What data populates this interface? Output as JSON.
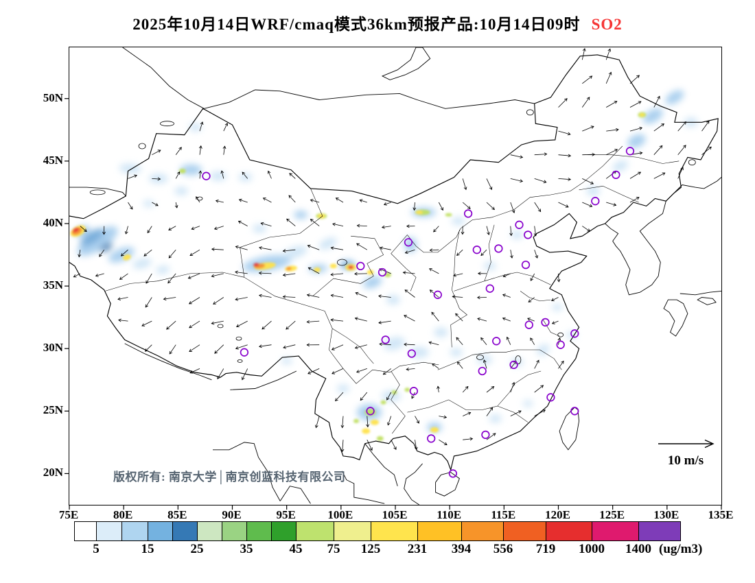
{
  "title": {
    "text": "2025年10月14日WRF/cmaq模式36km预报产品:10月14日09时",
    "species": "SO2",
    "species_color": "#F63535"
  },
  "axes": {
    "lon_range": [
      75,
      135
    ],
    "lat_range": [
      17.5,
      54.1
    ],
    "lat_ticks": [
      {
        "label": "50N",
        "value": 50
      },
      {
        "label": "45N",
        "value": 45
      },
      {
        "label": "40N",
        "value": 40
      },
      {
        "label": "35N",
        "value": 35
      },
      {
        "label": "30N",
        "value": 30
      },
      {
        "label": "25N",
        "value": 25
      },
      {
        "label": "20N",
        "value": 20
      }
    ],
    "lon_ticks": [
      {
        "label": "75E",
        "value": 75
      },
      {
        "label": "80E",
        "value": 80
      },
      {
        "label": "85E",
        "value": 85
      },
      {
        "label": "90E",
        "value": 90
      },
      {
        "label": "95E",
        "value": 95
      },
      {
        "label": "100E",
        "value": 100
      },
      {
        "label": "105E",
        "value": 105
      },
      {
        "label": "110E",
        "value": 110
      },
      {
        "label": "115E",
        "value": 115
      },
      {
        "label": "120E",
        "value": 120
      },
      {
        "label": "125E",
        "value": 125
      },
      {
        "label": "130E",
        "value": 130
      },
      {
        "label": "135E",
        "value": 135
      }
    ]
  },
  "colorbar": {
    "unit": "(ug/m3)",
    "segments": [
      {
        "color": "#FFFFFF",
        "width": 0.036,
        "tick": "5"
      },
      {
        "color": "#DCEDF9",
        "width": 0.042,
        "tick": ""
      },
      {
        "color": "#AFD5F0",
        "width": 0.043,
        "tick": "15"
      },
      {
        "color": "#74B2E0",
        "width": 0.041,
        "tick": ""
      },
      {
        "color": "#3579B5",
        "width": 0.041,
        "tick": "25"
      },
      {
        "color": "#CDE7C1",
        "width": 0.041,
        "tick": ""
      },
      {
        "color": "#9AD383",
        "width": 0.041,
        "tick": "35"
      },
      {
        "color": "#5FBC4D",
        "width": 0.04,
        "tick": ""
      },
      {
        "color": "#2FA02B",
        "width": 0.041,
        "tick": "45"
      },
      {
        "color": "#BEE26E",
        "width": 0.063,
        "tick": "75"
      },
      {
        "color": "#EFEF8E",
        "width": 0.061,
        "tick": "125"
      },
      {
        "color": "#FFE44D",
        "width": 0.077,
        "tick": "231"
      },
      {
        "color": "#FFC125",
        "width": 0.072,
        "tick": "394"
      },
      {
        "color": "#F79429",
        "width": 0.07,
        "tick": "556"
      },
      {
        "color": "#F06022",
        "width": 0.07,
        "tick": "719"
      },
      {
        "color": "#E62E2E",
        "width": 0.076,
        "tick": "1000"
      },
      {
        "color": "#DF1A6E",
        "width": 0.077,
        "tick": "1400"
      },
      {
        "color": "#7E3CB8",
        "width": 0.068,
        "tick": ""
      }
    ]
  },
  "map": {
    "copyright": "版权所有: 南京大学│南京创蓝科技有限公司",
    "wind_legend": "10 m/s",
    "marker_color": "#8800CC",
    "plume_colors": {
      "b1": "#C9E2F5",
      "b2": "#9CC8EC",
      "b3": "#5E9FD4",
      "b4": "#2E6FA8",
      "g": "#8FCE74",
      "yg": "#BFDF5E",
      "y": "#FFE24A",
      "o": "#F6902E",
      "r": "#E8322E"
    },
    "cities": [
      [
        87.6,
        43.8
      ],
      [
        111.7,
        40.8
      ],
      [
        116.4,
        39.9
      ],
      [
        117.2,
        39.1
      ],
      [
        114.5,
        38.0
      ],
      [
        112.5,
        37.9
      ],
      [
        117.0,
        36.7
      ],
      [
        113.7,
        34.8
      ],
      [
        108.9,
        34.3
      ],
      [
        106.2,
        38.5
      ],
      [
        103.8,
        36.1
      ],
      [
        101.8,
        36.6
      ],
      [
        104.1,
        30.7
      ],
      [
        106.5,
        29.6
      ],
      [
        114.3,
        30.6
      ],
      [
        117.3,
        31.9
      ],
      [
        118.8,
        32.1
      ],
      [
        121.5,
        31.2
      ],
      [
        120.2,
        30.3
      ],
      [
        115.9,
        28.7
      ],
      [
        113.0,
        28.2
      ],
      [
        119.3,
        26.1
      ],
      [
        113.3,
        23.1
      ],
      [
        108.3,
        22.8
      ],
      [
        106.7,
        26.6
      ],
      [
        102.7,
        25.0
      ],
      [
        91.1,
        29.7
      ],
      [
        110.3,
        20.0
      ],
      [
        123.4,
        41.8
      ],
      [
        125.3,
        43.9
      ],
      [
        126.6,
        45.8
      ],
      [
        121.5,
        25.0
      ]
    ],
    "plumes": [
      [
        77.6,
        38.6,
        34,
        13,
        "b2",
        -33
      ],
      [
        77.1,
        38.9,
        20,
        8,
        "b3",
        -33
      ],
      [
        78.4,
        38.1,
        10,
        5,
        "b4",
        -33
      ],
      [
        76.2,
        39.4,
        12,
        7,
        "b2",
        -25
      ],
      [
        79.8,
        37.5,
        20,
        9,
        "b2",
        -22
      ],
      [
        81.7,
        36.8,
        14,
        7,
        "b1",
        -15
      ],
      [
        83.6,
        36.3,
        10,
        6,
        "b1",
        -10
      ],
      [
        80.6,
        44.4,
        16,
        7,
        "b1",
        5
      ],
      [
        83.2,
        43.6,
        14,
        7,
        "b1",
        0
      ],
      [
        86.2,
        44.3,
        16,
        8,
        "b2",
        0
      ],
      [
        88.7,
        43.8,
        12,
        7,
        "b1",
        0
      ],
      [
        91.2,
        43.7,
        10,
        6,
        "b1",
        0
      ],
      [
        85.3,
        42.6,
        10,
        6,
        "b1",
        0
      ],
      [
        86.6,
        47.7,
        9,
        6,
        "b1",
        0
      ],
      [
        82.3,
        41.6,
        8,
        5,
        "b1",
        0
      ],
      [
        93.2,
        36.8,
        36,
        11,
        "b2",
        -10
      ],
      [
        95.8,
        37.7,
        18,
        8,
        "b1",
        -18
      ],
      [
        98.8,
        38.4,
        14,
        7,
        "b1",
        -25
      ],
      [
        97.9,
        36.4,
        14,
        6,
        "b2",
        -5
      ],
      [
        100.6,
        36.7,
        11,
        6,
        "b3",
        0
      ],
      [
        102.9,
        35.3,
        14,
        8,
        "b2",
        -20
      ],
      [
        104.8,
        33.9,
        10,
        7,
        "b1",
        0
      ],
      [
        106.4,
        38.3,
        9,
        11,
        "b2",
        0
      ],
      [
        107.6,
        40.9,
        18,
        7,
        "b2",
        0
      ],
      [
        110.8,
        40.2,
        10,
        6,
        "b1",
        0
      ],
      [
        96.3,
        40.7,
        10,
        6,
        "b2",
        0
      ],
      [
        92.5,
        39.6,
        10,
        6,
        "b1",
        0
      ],
      [
        104.9,
        30.4,
        16,
        9,
        "b1",
        -15
      ],
      [
        107.2,
        29.7,
        14,
        8,
        "b1",
        0
      ],
      [
        109.2,
        31.3,
        10,
        7,
        "b1",
        0
      ],
      [
        102.6,
        24.9,
        18,
        12,
        "b2",
        0
      ],
      [
        104.6,
        26.2,
        14,
        8,
        "b1",
        0
      ],
      [
        108.6,
        23.7,
        11,
        7,
        "b2",
        0
      ],
      [
        110.6,
        29.7,
        9,
        6,
        "b1",
        0
      ],
      [
        113.2,
        29.1,
        11,
        7,
        "b1",
        0
      ],
      [
        116.2,
        28.9,
        9,
        6,
        "b1",
        0
      ],
      [
        118.6,
        29.9,
        10,
        7,
        "b1",
        -35
      ],
      [
        121.2,
        31.1,
        8,
        5,
        "b1",
        0
      ],
      [
        114.2,
        24.4,
        9,
        6,
        "b1",
        0
      ],
      [
        117.2,
        25.6,
        7,
        5,
        "b1",
        0
      ],
      [
        123.2,
        42.6,
        10,
        7,
        "b1",
        0
      ],
      [
        125.7,
        44.6,
        12,
        7,
        "b1",
        -25
      ],
      [
        127.2,
        46.6,
        14,
        9,
        "b2",
        -25
      ],
      [
        128.7,
        48.6,
        16,
        9,
        "b2",
        -30
      ],
      [
        130.7,
        50.1,
        15,
        8,
        "b2",
        -32
      ],
      [
        132.2,
        48.1,
        10,
        7,
        "b1",
        0
      ],
      [
        113.7,
        36.6,
        9,
        6,
        "b1",
        0
      ],
      [
        116.2,
        39.1,
        9,
        6,
        "b1",
        0
      ],
      [
        119.9,
        33.3,
        8,
        5,
        "b1",
        0
      ],
      [
        100.2,
        26.8,
        9,
        6,
        "b1",
        0
      ],
      [
        95.0,
        29.0,
        8,
        5,
        "b1",
        0
      ],
      [
        75.8,
        39.4,
        12,
        7,
        "y",
        -28
      ],
      [
        75.7,
        39.4,
        8,
        5,
        "o",
        -28
      ],
      [
        75.6,
        39.5,
        5,
        3,
        "r",
        -28
      ],
      [
        80.3,
        37.3,
        6,
        4,
        "y",
        -20
      ],
      [
        85.4,
        44.2,
        5,
        3.5,
        "yg",
        0
      ],
      [
        98.2,
        40.6,
        8,
        4,
        "yg",
        0
      ],
      [
        98.2,
        40.6,
        5,
        3,
        "y",
        0
      ],
      [
        93.0,
        36.6,
        16,
        5,
        "y",
        -8
      ],
      [
        92.5,
        36.6,
        8,
        3.5,
        "o",
        -8
      ],
      [
        92.2,
        36.7,
        4,
        2.5,
        "r",
        -8
      ],
      [
        95.4,
        36.4,
        9,
        4,
        "y",
        -8
      ],
      [
        95.2,
        36.4,
        4,
        2.5,
        "o",
        -8
      ],
      [
        97.8,
        36.3,
        5,
        3.5,
        "y",
        0
      ],
      [
        99.3,
        36.6,
        5,
        3.5,
        "y",
        0
      ],
      [
        100.9,
        36.5,
        8,
        5,
        "y",
        0
      ],
      [
        100.9,
        36.5,
        4,
        2.8,
        "r",
        0
      ],
      [
        102.7,
        36.1,
        5,
        3.5,
        "y",
        0
      ],
      [
        104.3,
        35.9,
        5,
        3.5,
        "yg",
        0
      ],
      [
        107.5,
        40.9,
        11,
        4,
        "yg",
        0
      ],
      [
        107.2,
        40.9,
        5,
        2.5,
        "y",
        0
      ],
      [
        109.9,
        40.7,
        5,
        2.5,
        "yg",
        0
      ],
      [
        102.7,
        24.9,
        8,
        5,
        "yg",
        0
      ],
      [
        103.1,
        24.1,
        6,
        4,
        "y",
        0
      ],
      [
        102.3,
        23.4,
        6,
        4,
        "y",
        0
      ],
      [
        103.9,
        25.7,
        4,
        3,
        "yg",
        0
      ],
      [
        104.9,
        26.5,
        4,
        3,
        "yg",
        0
      ],
      [
        101.4,
        24.2,
        4,
        3,
        "yg",
        0
      ],
      [
        103.6,
        22.8,
        5,
        3.5,
        "yg",
        0
      ],
      [
        108.6,
        23.5,
        6,
        4,
        "y",
        0
      ],
      [
        106.1,
        26.7,
        4,
        3,
        "yg",
        0
      ],
      [
        127.7,
        48.7,
        6,
        4,
        "yg",
        0
      ],
      [
        127.7,
        48.7,
        3.5,
        2.2,
        "y",
        0
      ]
    ]
  }
}
